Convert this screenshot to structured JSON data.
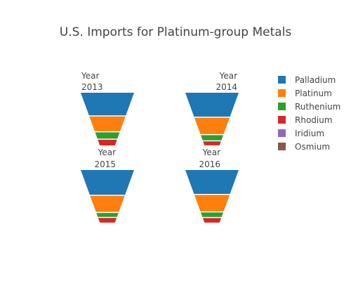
{
  "chart_data": {
    "type": "funnelarea",
    "title": "U.S. Imports for Platinum-group Metals",
    "legend_position": "right",
    "series": [
      {
        "name": "Palladium",
        "color": "#1f77b4"
      },
      {
        "name": "Platinum",
        "color": "#ff7f0e"
      },
      {
        "name": "Ruthenium",
        "color": "#2ca02c"
      },
      {
        "name": "Rhodium",
        "color": "#d62728"
      },
      {
        "name": "Iridium",
        "color": "#9467bd"
      },
      {
        "name": "Osmium",
        "color": "#8c564b"
      }
    ],
    "panels": [
      {
        "label_line1": "Year",
        "label_line2": "2013",
        "label_align": "left",
        "values": {
          "Palladium": 38,
          "Platinum": 26,
          "Ruthenium": 12,
          "Rhodium": 11,
          "Iridium": 1,
          "Osmium": 0.5
        }
      },
      {
        "label_line1": "Year",
        "label_line2": "2014",
        "label_align": "right",
        "values": {
          "Palladium": 39,
          "Platinum": 28,
          "Ruthenium": 10,
          "Rhodium": 8,
          "Iridium": 1,
          "Osmium": 0.5
        }
      },
      {
        "label_line1": "Year",
        "label_line2": "2015",
        "label_align": "right",
        "values": {
          "Palladium": 40,
          "Platinum": 27,
          "Ruthenium": 8,
          "Rhodium": 9,
          "Iridium": 1,
          "Osmium": 0.5
        }
      },
      {
        "label_line1": "Year",
        "label_line2": "2016",
        "label_align": "right",
        "values": {
          "Palladium": 39,
          "Platinum": 28,
          "Ruthenium": 9,
          "Rhodium": 9,
          "Iridium": 1,
          "Osmium": 0.5
        }
      }
    ]
  }
}
